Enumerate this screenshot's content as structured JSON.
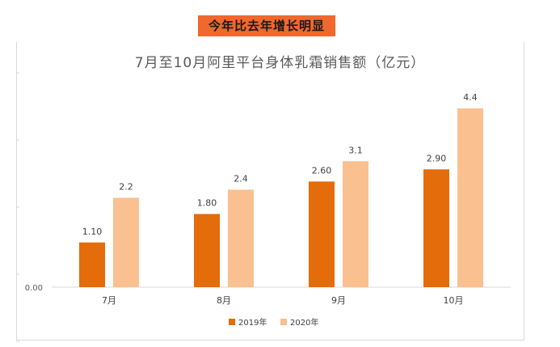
{
  "banner": "今年比去年增长明显",
  "chart_data": {
    "type": "bar",
    "title": "7月至10月阿里平台身体乳霜销售额（亿元）",
    "categories": [
      "7月",
      "8月",
      "9月",
      "10月"
    ],
    "series": [
      {
        "name": "2019年",
        "values": [
          1.1,
          1.8,
          2.6,
          2.9
        ],
        "labels": [
          "1.10",
          "1.80",
          "2.60",
          "2.90"
        ],
        "color": "#e46c0a"
      },
      {
        "name": "2020年",
        "values": [
          2.2,
          2.4,
          3.1,
          4.4
        ],
        "labels": [
          "2.2",
          "2.4",
          "3.1",
          "4.4"
        ],
        "color": "#fac090"
      }
    ],
    "y_tick_label": "0.00",
    "ylim": [
      0,
      4.4
    ],
    "grid": false,
    "legend": "bottom"
  }
}
